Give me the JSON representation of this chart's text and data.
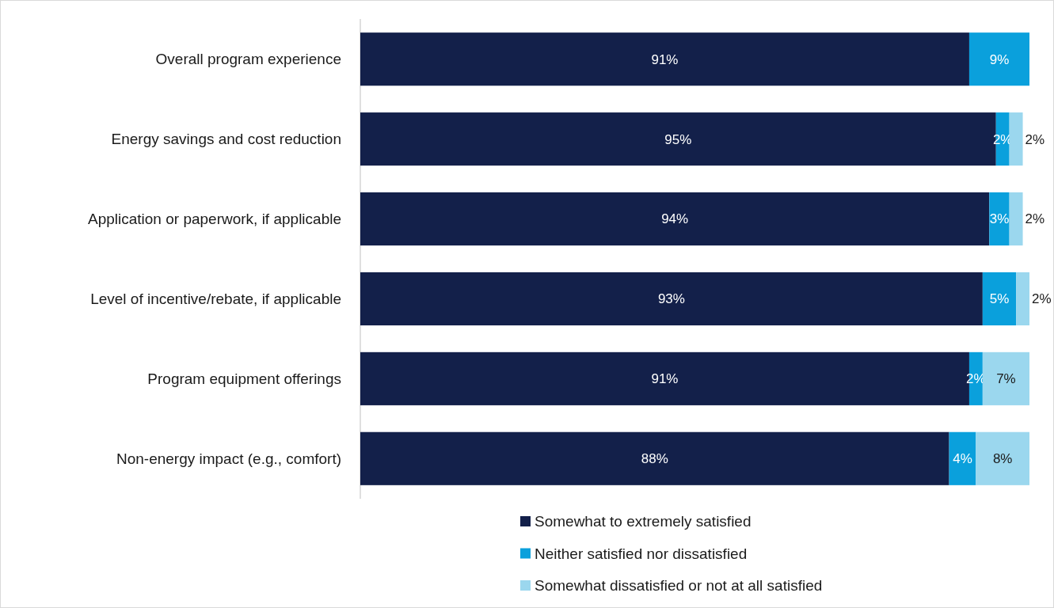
{
  "chart_data": {
    "type": "bar",
    "orientation": "horizontal",
    "stacked": true,
    "legend": "bottom",
    "categories": [
      "Overall program experience",
      "Energy savings and cost reduction",
      "Application or paperwork, if applicable",
      "Level of incentive/rebate, if applicable",
      "Program equipment offerings",
      "Non-energy impact (e.g., comfort)"
    ],
    "series": [
      {
        "name": "Somewhat to extremely satisfied",
        "color": "#13204a",
        "values": [
          91,
          95,
          94,
          93,
          91,
          88
        ],
        "value_labels": [
          "91%",
          "95%",
          "94%",
          "93%",
          "91%",
          "88%"
        ]
      },
      {
        "name": "Neither satisfied nor dissatisfied",
        "color": "#0aa0dc",
        "values": [
          9,
          2,
          3,
          5,
          2,
          4
        ],
        "value_labels": [
          "9%",
          "2%",
          "3%",
          "5%",
          "2%",
          "4%"
        ]
      },
      {
        "name": "Somewhat dissatisfied or not at all satisfied",
        "color": "#9bd7ee",
        "values": [
          null,
          2,
          2,
          2,
          7,
          8
        ],
        "value_labels": [
          null,
          "2%",
          "2%",
          "2%",
          "7%",
          "8%"
        ]
      }
    ]
  }
}
